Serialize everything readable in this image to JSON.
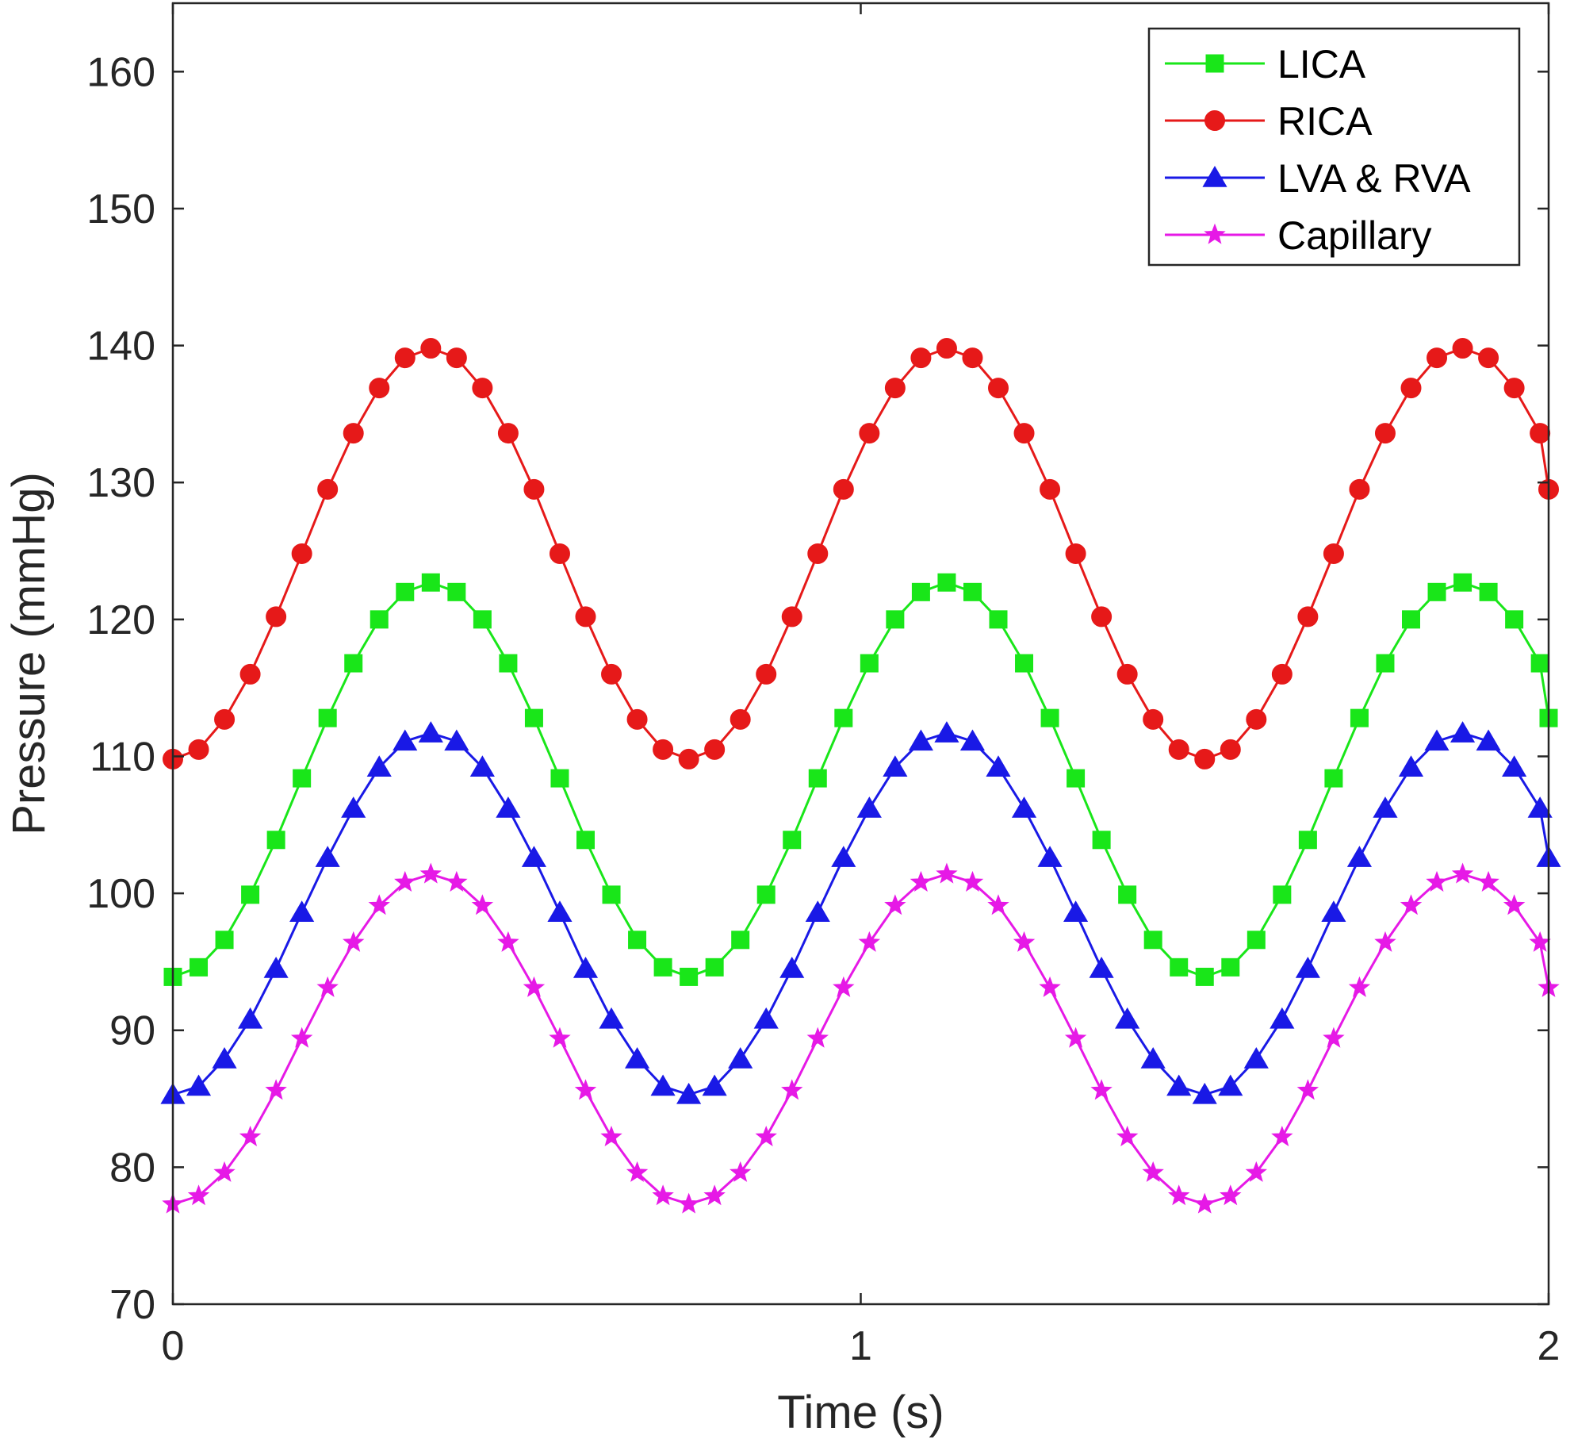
{
  "chart_data": {
    "type": "line",
    "title": "",
    "xlabel": "Time (s)",
    "ylabel": "Pressure (mmHg)",
    "xlim": [
      0,
      2
    ],
    "ylim": [
      70,
      165
    ],
    "xticks": [
      0,
      1,
      2
    ],
    "yticks": [
      70,
      80,
      90,
      100,
      110,
      120,
      130,
      140,
      150,
      160
    ],
    "grid": false,
    "legend_position": "top-right",
    "x": [
      0,
      0.0375,
      0.075,
      0.1125,
      0.15,
      0.1875,
      0.225,
      0.2625,
      0.3,
      0.3375,
      0.375,
      0.4125,
      0.45,
      0.4875,
      0.525,
      0.5625,
      0.6,
      0.6375,
      0.675,
      0.7125,
      0.75,
      0.7875,
      0.825,
      0.8625,
      0.9,
      0.9375,
      0.975,
      1.0125,
      1.05,
      1.0875,
      1.125,
      1.1625,
      1.2,
      1.2375,
      1.275,
      1.3125,
      1.35,
      1.3875,
      1.425,
      1.4625,
      1.5,
      1.5375,
      1.575,
      1.6125,
      1.65,
      1.6875,
      1.725,
      1.7625,
      1.8,
      1.8375,
      1.875,
      1.9125,
      1.95,
      1.9875,
      2.0
    ],
    "series": [
      {
        "name": "LICA",
        "color": "#19e619",
        "marker": "square",
        "values": [
          93.9,
          94.6,
          96.6,
          99.9,
          103.9,
          108.4,
          112.8,
          116.8,
          120.0,
          122.0,
          122.7,
          122.0,
          120.0,
          116.8,
          112.8,
          108.4,
          103.9,
          99.9,
          96.6,
          94.6,
          93.9,
          94.6,
          96.6,
          99.9,
          103.9,
          108.4,
          112.8,
          116.8,
          120.0,
          122.0,
          122.7,
          122.0,
          120.0,
          116.8,
          112.8,
          108.4,
          103.9,
          99.9,
          96.6,
          94.6,
          93.9,
          94.6,
          96.6,
          99.9,
          103.9,
          108.4,
          112.8,
          116.8,
          120.0,
          122.0,
          122.7,
          122.0,
          120.0,
          116.8,
          112.8
        ]
      },
      {
        "name": "RICA",
        "color": "#e61919",
        "marker": "circle",
        "values": [
          109.8,
          110.5,
          112.7,
          116.0,
          120.2,
          124.8,
          129.5,
          133.6,
          136.9,
          139.1,
          139.8,
          139.1,
          136.9,
          133.6,
          129.5,
          124.8,
          120.2,
          116.0,
          112.7,
          110.5,
          109.8,
          110.5,
          112.7,
          116.0,
          120.2,
          124.8,
          129.5,
          133.6,
          136.9,
          139.1,
          139.8,
          139.1,
          136.9,
          133.6,
          129.5,
          124.8,
          120.2,
          116.0,
          112.7,
          110.5,
          109.8,
          110.5,
          112.7,
          116.0,
          120.2,
          124.8,
          129.5,
          133.6,
          136.9,
          139.1,
          139.8,
          139.1,
          136.9,
          133.6,
          129.5
        ]
      },
      {
        "name": "LVA & RVA",
        "color": "#1919e6",
        "marker": "triangle",
        "values": [
          85.3,
          85.9,
          87.9,
          90.8,
          94.5,
          98.6,
          102.6,
          106.2,
          109.2,
          111.1,
          111.7,
          111.1,
          109.2,
          106.2,
          102.6,
          98.6,
          94.5,
          90.8,
          87.9,
          85.9,
          85.3,
          85.9,
          87.9,
          90.8,
          94.5,
          98.6,
          102.6,
          106.2,
          109.2,
          111.1,
          111.7,
          111.1,
          109.2,
          106.2,
          102.6,
          98.6,
          94.5,
          90.8,
          87.9,
          85.9,
          85.3,
          85.9,
          87.9,
          90.8,
          94.5,
          98.6,
          102.6,
          106.2,
          109.2,
          111.1,
          111.7,
          111.1,
          109.2,
          106.2,
          102.6
        ]
      },
      {
        "name": "Capillary",
        "color": "#e619e6",
        "marker": "star",
        "values": [
          77.3,
          77.9,
          79.6,
          82.2,
          85.6,
          89.4,
          93.1,
          96.4,
          99.1,
          100.8,
          101.4,
          100.8,
          99.1,
          96.4,
          93.1,
          89.4,
          85.6,
          82.2,
          79.6,
          77.9,
          77.3,
          77.9,
          79.6,
          82.2,
          85.6,
          89.4,
          93.1,
          96.4,
          99.1,
          100.8,
          101.4,
          100.8,
          99.1,
          96.4,
          93.1,
          89.4,
          85.6,
          82.2,
          79.6,
          77.9,
          77.3,
          77.9,
          79.6,
          82.2,
          85.6,
          89.4,
          93.1,
          96.4,
          99.1,
          100.8,
          101.4,
          100.8,
          99.1,
          96.4,
          93.1
        ]
      }
    ]
  }
}
